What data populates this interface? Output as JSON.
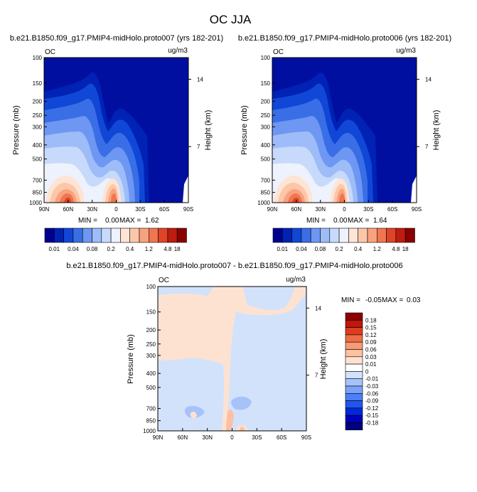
{
  "figure_title": "OC JJA",
  "colors": {
    "abs_levels": [
      "#00008f",
      "#0022b5",
      "#1147d6",
      "#3a6ee6",
      "#6d97f2",
      "#9dbcf8",
      "#c8dafb",
      "#eef2fc",
      "#fde4d4",
      "#fcc7a9",
      "#f9a27f",
      "#f07650",
      "#df4426",
      "#bd1c0f",
      "#8a0000"
    ],
    "diff_levels": [
      "#000080",
      "#0000b8",
      "#0028dc",
      "#2255f0",
      "#4d7ef5",
      "#7aa2f7",
      "#a6c2f9",
      "#d2e2fb",
      "#ffffff",
      "#fde2d2",
      "#fcc0a2",
      "#f99a72",
      "#f06c48",
      "#de3d20",
      "#c0170b",
      "#8b0000"
    ],
    "bg_deep": "#000fa0"
  },
  "chart_data": [
    {
      "type": "heatmap",
      "field": "OC",
      "case": "b.e21.B1850.f09_g17.PMIP4-midHolo.proto007 (yrs 182-201)",
      "units": "ug/m3",
      "x_ticks": [
        "90N",
        "60N",
        "30N",
        "0",
        "30S",
        "60S",
        "90S"
      ],
      "y_ticks": [
        "100",
        "150",
        "200",
        "250",
        "300",
        "400",
        "500",
        "700",
        "850",
        "1000"
      ],
      "ylabel": "Pressure (mb)",
      "ylabel_right": "Height (km)",
      "right_ticks": [
        "14",
        "7"
      ],
      "min_label": "MIN =",
      "min_value": "0.00",
      "max_label": "MAX =",
      "max_value": "1.62",
      "colorbar_labels": [
        "0.01",
        "0.04",
        "0.08",
        "0.2",
        "0.4",
        "1.2",
        "4.8",
        "18"
      ]
    },
    {
      "type": "heatmap",
      "field": "OC",
      "case": "b.e21.B1850.f09_g17.PMIP4-midHolo.proto006 (yrs 182-201)",
      "units": "ug/m3",
      "x_ticks": [
        "90N",
        "60N",
        "30N",
        "0",
        "30S",
        "60S",
        "90S"
      ],
      "y_ticks": [
        "100",
        "150",
        "200",
        "250",
        "300",
        "400",
        "500",
        "700",
        "850",
        "1000"
      ],
      "ylabel": "Pressure (mb)",
      "ylabel_right": "Height (km)",
      "right_ticks": [
        "14",
        "7"
      ],
      "min_label": "MIN =",
      "min_value": "0.00",
      "max_label": "MAX =",
      "max_value": "1.64",
      "colorbar_labels": [
        "0.01",
        "0.04",
        "0.08",
        "0.2",
        "0.4",
        "1.2",
        "4.8",
        "18"
      ]
    },
    {
      "type": "heatmap",
      "field": "OC",
      "case": "b.e21.B1850.f09_g17.PMIP4-midHolo.proto007 - b.e21.B1850.f09_g17.PMIP4-midHolo.proto006",
      "units": "ug/m3",
      "x_ticks": [
        "90N",
        "60N",
        "30N",
        "0",
        "30S",
        "60S",
        "90S"
      ],
      "y_ticks": [
        "100",
        "150",
        "200",
        "250",
        "300",
        "400",
        "500",
        "700",
        "850",
        "1000"
      ],
      "ylabel": "Pressure (mb)",
      "ylabel_right": "Height (km)",
      "right_ticks": [
        "14",
        "7"
      ],
      "min_label": "MIN =",
      "min_value": "-0.05",
      "max_label": "MAX =",
      "max_value": "0.03",
      "colorbar_labels": [
        "0.18",
        "0.15",
        "0.12",
        "0.09",
        "0.06",
        "0.03",
        "0.01",
        "0",
        "-0.01",
        "-0.03",
        "-0.06",
        "-0.09",
        "-0.12",
        "-0.15",
        "-0.18"
      ]
    }
  ]
}
